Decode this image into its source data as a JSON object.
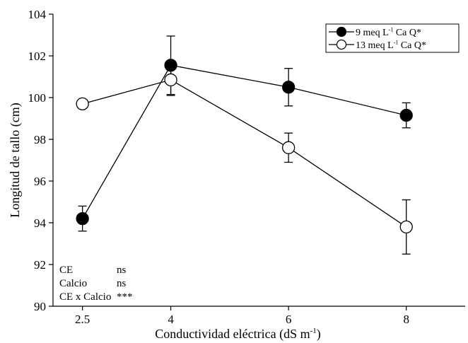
{
  "chart_data": {
    "type": "line",
    "xlabel": "Conductividad eléctrica (dS m",
    "xlabel_sup": "-1",
    "xlabel_end": ")",
    "ylabel": "Longitud de tallo (cm)",
    "x_ticks": [
      "2.5",
      "4",
      "6",
      "8"
    ],
    "x_values": [
      2.5,
      4,
      6,
      8
    ],
    "xlim": [
      2.0,
      9.0
    ],
    "ylim": [
      90,
      104
    ],
    "y_ticks": [
      90,
      92,
      94,
      96,
      98,
      100,
      102,
      104
    ],
    "grid": false,
    "legend_position": "top-right",
    "series": [
      {
        "name": "9 meq L",
        "name_sup": "-1",
        "name_end": " Ca Q*",
        "marker": "filled",
        "color": "#000000",
        "y": [
          94.2,
          101.55,
          100.5,
          99.15
        ],
        "err": [
          0.6,
          1.4,
          0.9,
          0.6
        ]
      },
      {
        "name": "13 meq L",
        "name_sup": "-1",
        "name_end": " Ca Q*",
        "marker": "open",
        "color": "#000000",
        "y": [
          99.7,
          100.85,
          97.6,
          93.8
        ],
        "err": [
          null,
          0.75,
          0.7,
          1.3
        ]
      }
    ],
    "annotations": [
      {
        "label": "CE",
        "value": "ns"
      },
      {
        "label": "Calcio",
        "value": "ns"
      },
      {
        "label": "CE x Calcio",
        "value": "***"
      }
    ]
  }
}
